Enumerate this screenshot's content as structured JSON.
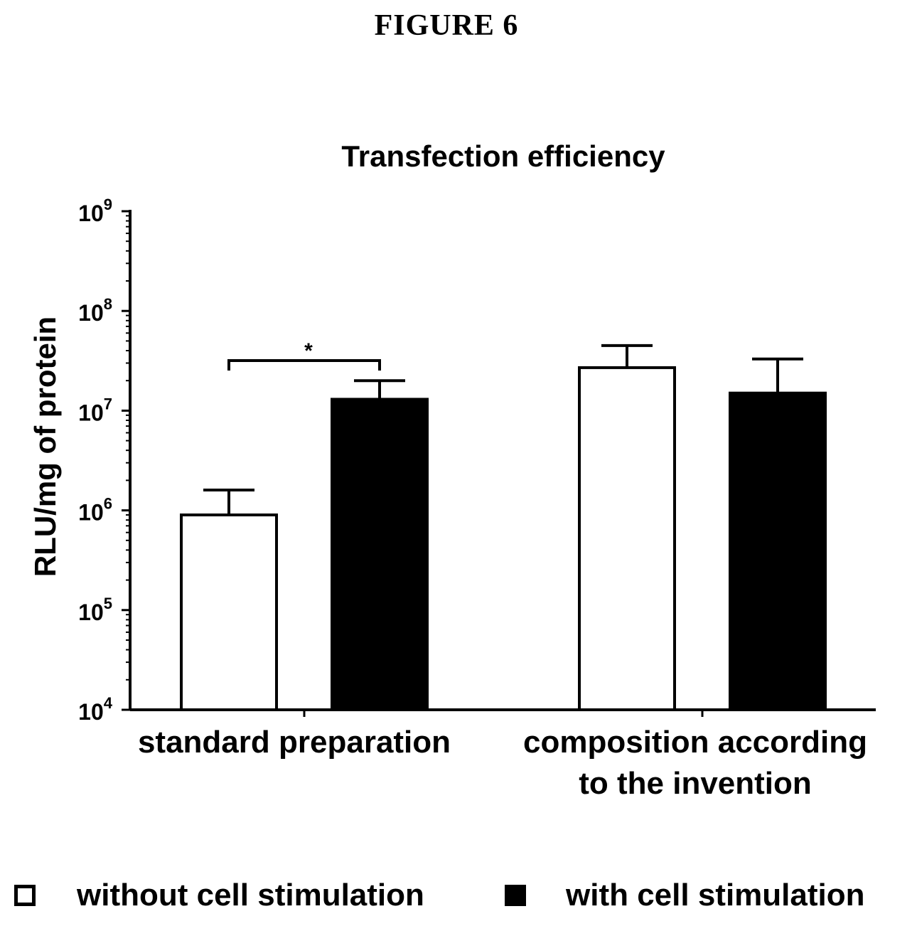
{
  "figure": {
    "label": "FIGURE 6"
  },
  "chart_data": {
    "type": "bar",
    "title": "Transfection efficiency",
    "ylabel": "RLU/mg of protein",
    "xlabel": "",
    "y_scale": "log",
    "ylim": [
      10000,
      1000000000
    ],
    "y_ticks": [
      {
        "value": 10000,
        "base": "10",
        "exp": "4"
      },
      {
        "value": 100000,
        "base": "10",
        "exp": "5"
      },
      {
        "value": 1000000,
        "base": "10",
        "exp": "6"
      },
      {
        "value": 10000000,
        "base": "10",
        "exp": "7"
      },
      {
        "value": 100000000,
        "base": "10",
        "exp": "8"
      },
      {
        "value": 1000000000,
        "base": "10",
        "exp": "9"
      }
    ],
    "categories": [
      {
        "lines": [
          "standard preparation"
        ]
      },
      {
        "lines": [
          "composition according",
          "to the invention"
        ]
      }
    ],
    "series": [
      {
        "name": "without cell stimulation",
        "fill": "#ffffff",
        "values": [
          900000,
          27000000
        ],
        "error_upper": [
          1600000,
          45000000
        ]
      },
      {
        "name": "with cell stimulation",
        "fill": "#000000",
        "values": [
          13000000,
          15000000
        ],
        "error_upper": [
          20000000,
          33000000
        ]
      }
    ],
    "annotations": [
      {
        "text": "*",
        "type": "significance-bracket",
        "category": 0,
        "between_series": [
          0,
          1
        ]
      }
    ],
    "grid": false,
    "legend_position": "bottom"
  }
}
